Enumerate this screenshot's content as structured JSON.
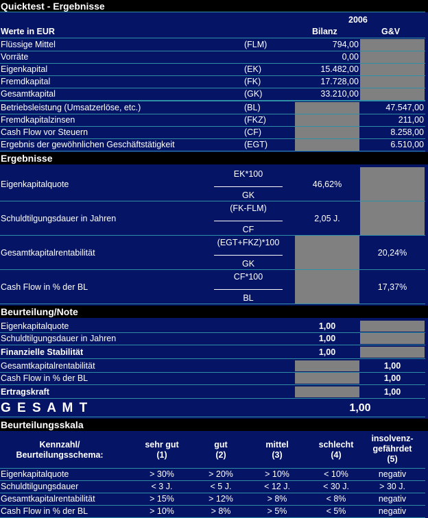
{
  "title": "Quicktest - Ergebnisse",
  "header": {
    "year": "2006",
    "label": "Werte in EUR",
    "bilanz": "Bilanz",
    "guv": "G&V"
  },
  "inputs": [
    {
      "label": "Flüssige Mittel",
      "code": "(FLM)",
      "bilanz": "794,00",
      "guv": ""
    },
    {
      "label": "Vorräte",
      "code": "",
      "bilanz": "0,00",
      "guv": ""
    },
    {
      "label": "Eigenkapital",
      "code": "(EK)",
      "bilanz": "15.482,00",
      "guv": ""
    },
    {
      "label": "Fremdkapital",
      "code": "(FK)",
      "bilanz": "17.728,00",
      "guv": ""
    },
    {
      "label": "Gesamtkapital",
      "code": "(GK)",
      "bilanz": "33.210,00",
      "guv": ""
    },
    {
      "label": "Betriebsleistung (Umsatzerlöse, etc.)",
      "code": "(BL)",
      "bilanz": "",
      "guv": "47.547,00"
    },
    {
      "label": "Fremdkapitalzinsen",
      "code": "(FKZ)",
      "bilanz": "",
      "guv": "211,00"
    },
    {
      "label": "Cash Flow vor Steuern",
      "code": "(CF)",
      "bilanz": "",
      "guv": "8.258,00"
    },
    {
      "label": "Ergebnis der gewöhnlichen Geschäftstätigkeit",
      "code": "(EGT)",
      "bilanz": "",
      "guv": "6.510,00"
    }
  ],
  "ergebnisse_title": "Ergebnisse",
  "ergebnisse": [
    {
      "label": "Eigenkapitalquote",
      "num": "EK*100",
      "den": "GK",
      "bilanz": "46,62%",
      "guv": ""
    },
    {
      "label": "Schuldtilgungsdauer in Jahren",
      "num": "(FK-FLM)",
      "den": "CF",
      "bilanz": "2,05 J.",
      "guv": ""
    },
    {
      "label": "Gesamtkapitalrentabilität",
      "num": "(EGT+FKZ)*100",
      "den": "GK",
      "bilanz": "",
      "guv": "20,24%"
    },
    {
      "label": "Cash Flow in % der BL",
      "num": "CF*100",
      "den": "BL",
      "bilanz": "",
      "guv": "17,37%"
    }
  ],
  "beurteilung_title": "Beurteilung/Note",
  "beurteilung": [
    {
      "label": "Eigenkapitalquote",
      "bilanz": "1,00",
      "guv": "",
      "bold": false
    },
    {
      "label": "Schuldtilgungsdauer in Jahren",
      "bilanz": "1,00",
      "guv": "",
      "bold": false
    },
    {
      "label": "Finanzielle Stabilität",
      "bilanz": "1,00",
      "guv": "",
      "bold": true
    },
    {
      "label": "Gesamtkapitalrentabilität",
      "bilanz": "",
      "guv": "1,00",
      "bold": false
    },
    {
      "label": "Cash Flow in % der BL",
      "bilanz": "",
      "guv": "1,00",
      "bold": false
    },
    {
      "label": "Ertragskraft",
      "bilanz": "",
      "guv": "1,00",
      "bold": true
    }
  ],
  "gesamt": {
    "label": "G E S A M T",
    "value": "1,00"
  },
  "skala_title": "Beurteilungsskala",
  "skala_header": {
    "col0": [
      "Kennzahl/",
      "Beurteilungsschema:"
    ],
    "cols": [
      [
        "sehr gut",
        "(1)"
      ],
      [
        "gut",
        "(2)"
      ],
      [
        "mittel",
        "(3)"
      ],
      [
        "schlecht",
        "(4)"
      ],
      [
        "insolvenz-",
        "gefährdet",
        "(5)"
      ]
    ]
  },
  "skala_rows": [
    {
      "label": "Eigenkapitalquote",
      "values": [
        "> 30%",
        "> 20%",
        "> 10%",
        "< 10%",
        "negativ"
      ]
    },
    {
      "label": "Schuldtilgungsdauer",
      "values": [
        "< 3 J.",
        "< 5 J.",
        "< 12 J.",
        "< 30 J.",
        "> 30 J."
      ]
    },
    {
      "label": "Gesamtkapitalrentabilität",
      "values": [
        "> 15%",
        "> 12%",
        "> 8%",
        "< 8%",
        "negativ"
      ]
    },
    {
      "label": "Cash Flow in % der BL",
      "values": [
        "> 10%",
        "> 8%",
        "> 5%",
        "< 5%",
        "negativ"
      ]
    }
  ]
}
